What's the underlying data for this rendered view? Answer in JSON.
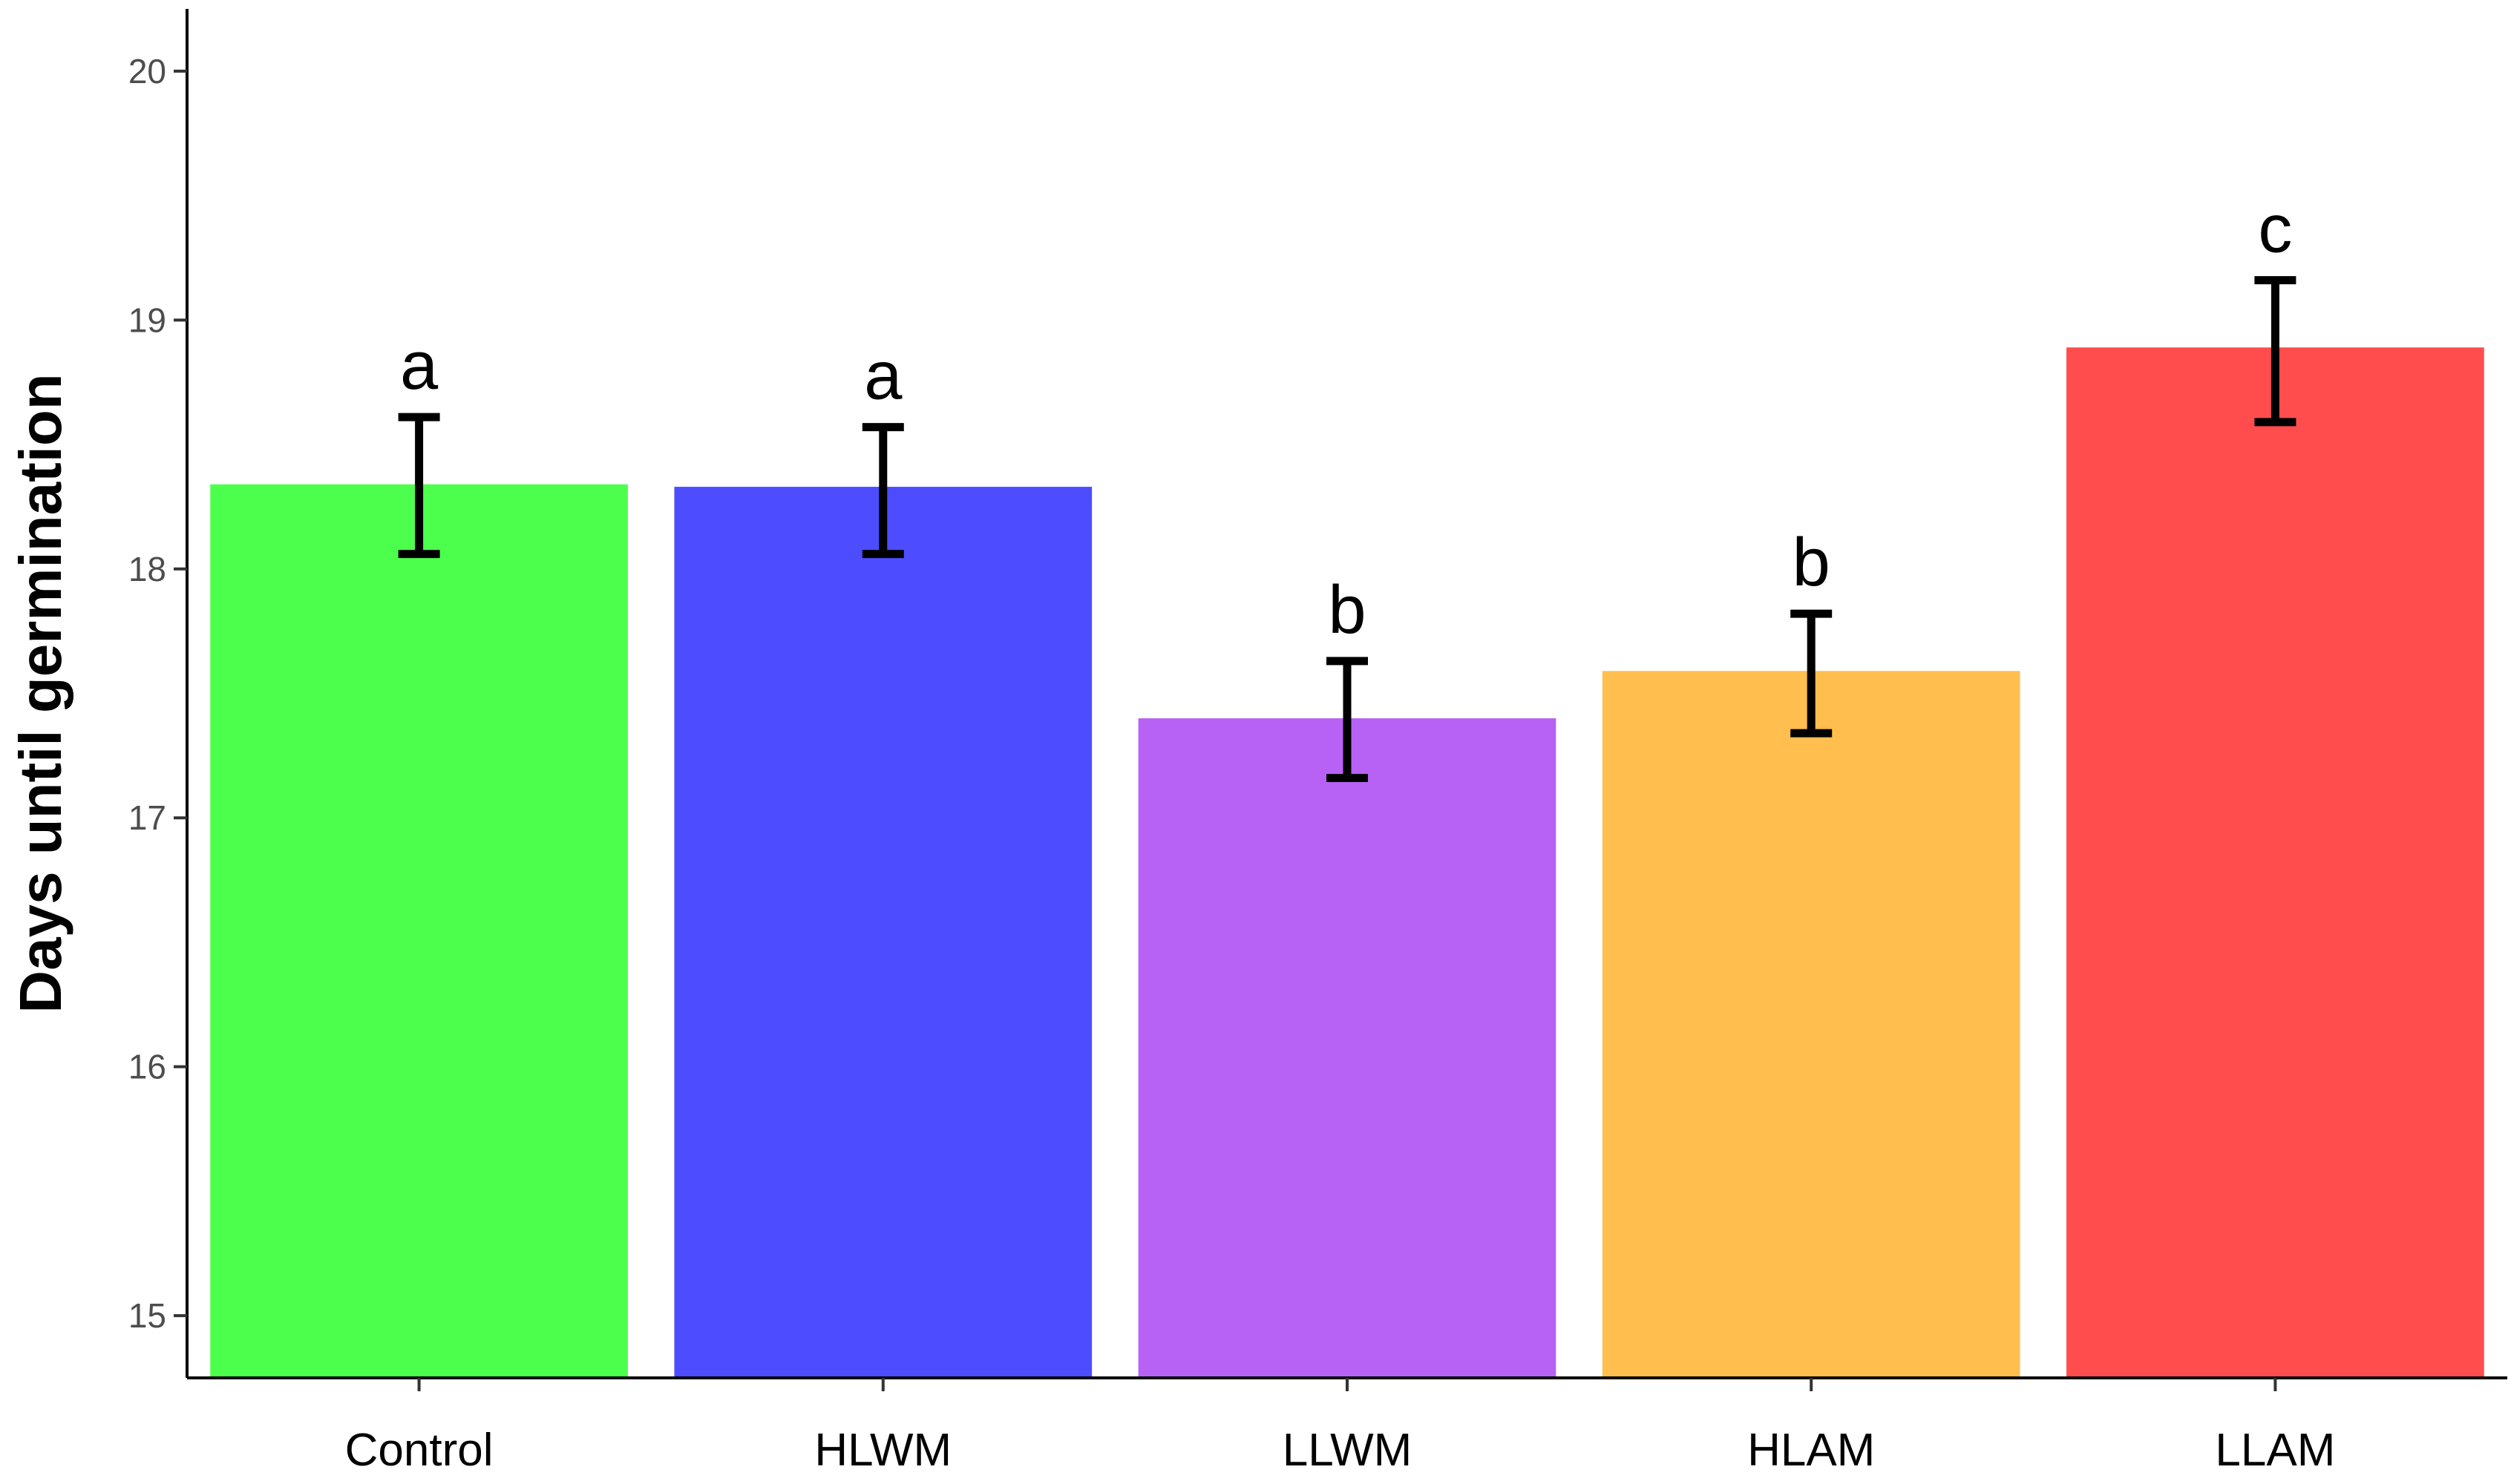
{
  "chart_data": {
    "type": "bar",
    "categories": [
      "Control",
      "HLWM",
      "LLWM",
      "HLAM",
      "LLAM"
    ],
    "values": [
      18.34,
      18.33,
      17.4,
      17.59,
      18.89
    ],
    "error_bars": {
      "lower": [
        18.06,
        18.06,
        17.16,
        17.34,
        18.59
      ],
      "upper": [
        18.61,
        18.57,
        17.63,
        17.82,
        19.16
      ]
    },
    "significance_labels": [
      "a",
      "a",
      "b",
      "b",
      "c"
    ],
    "colors": [
      "#4dff4d",
      "#4d4dff",
      "#b862f5",
      "#ffbe4d",
      "#ff4d4d"
    ],
    "ylabel": "Days until germination",
    "xlabel": "",
    "ylim": [
      14.75,
      20.25
    ],
    "yticks": [
      15,
      16,
      17,
      18,
      19,
      20
    ],
    "ytick_labels": [
      "15",
      "16",
      "17",
      "18",
      "19",
      "20"
    ],
    "grid": false,
    "legend": "none"
  }
}
